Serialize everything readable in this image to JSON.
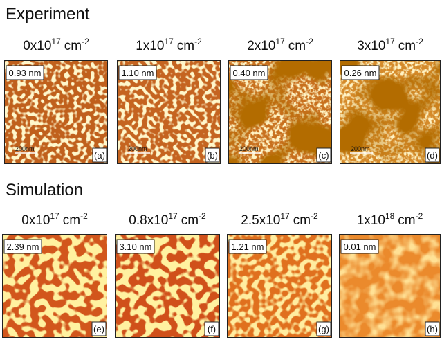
{
  "experiment": {
    "title": "Experiment",
    "panels": [
      {
        "dose": {
          "mantissa": "0x10",
          "exp": "17",
          "unit": "cm",
          "unit_exp": "-2"
        },
        "roughness": "0.93 nm",
        "scale_bar": "200nm",
        "label": "(a)"
      },
      {
        "dose": {
          "mantissa": "1x10",
          "exp": "17",
          "unit": "cm",
          "unit_exp": "-2"
        },
        "roughness": "1.10 nm",
        "scale_bar": "200nm",
        "label": "(b)"
      },
      {
        "dose": {
          "mantissa": "2x10",
          "exp": "17",
          "unit": "cm",
          "unit_exp": "-2"
        },
        "roughness": "0.40 nm",
        "scale_bar": "200nm",
        "label": "(c)"
      },
      {
        "dose": {
          "mantissa": "3x10",
          "exp": "17",
          "unit": "cm",
          "unit_exp": "-2"
        },
        "roughness": "0.26 nm",
        "scale_bar": "200nm",
        "label": "(d)"
      }
    ]
  },
  "simulation": {
    "title": "Simulation",
    "panels": [
      {
        "dose": {
          "mantissa": "0x10",
          "exp": "17",
          "unit": "cm",
          "unit_exp": "-2"
        },
        "roughness": "2.39 nm",
        "label": "(e)"
      },
      {
        "dose": {
          "mantissa": "0.8x10",
          "exp": "17",
          "unit": "cm",
          "unit_exp": "-2"
        },
        "roughness": "3.10 nm",
        "label": "(f)"
      },
      {
        "dose": {
          "mantissa": "2.5x10",
          "exp": "17",
          "unit": "cm",
          "unit_exp": "-2"
        },
        "roughness": "1.21 nm",
        "label": "(g)"
      },
      {
        "dose": {
          "mantissa": "1x10",
          "exp": "18",
          "unit": "cm",
          "unit_exp": "-2"
        },
        "roughness": "0.01 nm",
        "label": "(h)"
      }
    ]
  }
}
